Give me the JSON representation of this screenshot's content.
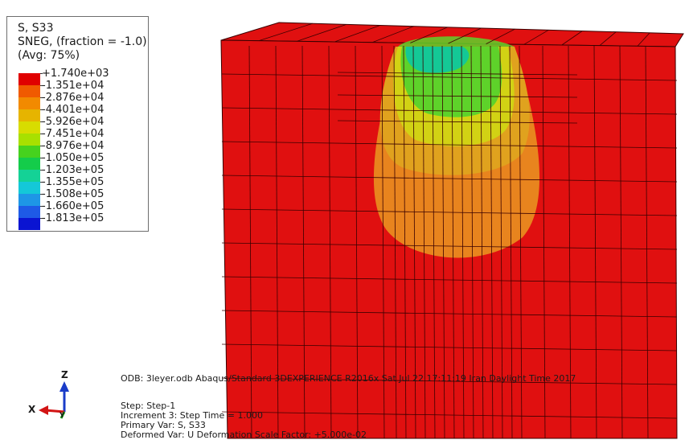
{
  "legend": {
    "line1": "S, S33",
    "line2": "SNEG, (fraction = -1.0)",
    "line3": "(Avg: 75%)",
    "entries": [
      {
        "label": "+1.740e+03",
        "color": "#e00000"
      },
      {
        "label": "-1.351e+04",
        "color": "#f05a00"
      },
      {
        "label": "-2.876e+04",
        "color": "#f28a00"
      },
      {
        "label": "-4.401e+04",
        "color": "#e6b400"
      },
      {
        "label": "-5.926e+04",
        "color": "#d8dc00"
      },
      {
        "label": "-7.451e+04",
        "color": "#a8e000"
      },
      {
        "label": "-8.976e+04",
        "color": "#46d21e"
      },
      {
        "label": "-1.050e+05",
        "color": "#14cc4a"
      },
      {
        "label": "-1.203e+05",
        "color": "#14d296"
      },
      {
        "label": "-1.355e+05",
        "color": "#14c8d8"
      },
      {
        "label": "-1.508e+05",
        "color": "#1e96e6"
      },
      {
        "label": "-1.660e+05",
        "color": "#1e5ae6"
      },
      {
        "label": "-1.813e+05",
        "color": "#0a14d2"
      }
    ]
  },
  "info": {
    "odb_line": "ODB: 3leyer.odb    Abaqus/Standard 3DEXPERIENCE R2016x    Sat Jul 22 17:11:19 Iran Daylight Time 2017",
    "step_line": "Step: Step-1",
    "increment_line": "Increment      3: Step Time =      1.000",
    "primary_var_line": "Primary Var: S, S33",
    "deformed_var_line": "Deformed Var: U   Deformation Scale Factor: +5.000e-02"
  },
  "triad": {
    "z": "Z",
    "x": "X",
    "y": "Y",
    "colors": {
      "z": "#1a3cc8",
      "x": "#d21414",
      "y": "#14a014"
    }
  },
  "model_colors": {
    "body": "#e01010",
    "mesh": "#3a0000",
    "contour_outer": "#e8841e",
    "contour_mid": "#e0a21e",
    "contour_yellow": "#d2d214",
    "contour_green": "#5ed22a",
    "contour_teal": "#14c896"
  }
}
